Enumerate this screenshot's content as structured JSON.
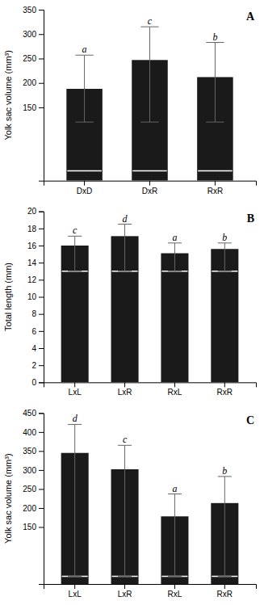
{
  "chart_data": [
    {
      "type": "bar",
      "annotations": [
        "A"
      ],
      "categories": [
        "DxD",
        "DxR",
        "RxR"
      ],
      "values": [
        188,
        247,
        212
      ],
      "error_high": [
        257,
        315,
        283
      ],
      "error_low": [
        120,
        120,
        120
      ],
      "sig_labels": [
        "a",
        "c",
        "b"
      ],
      "white_line_y": 20,
      "ylabel": "Yolk sac volume (mm³)",
      "ylim": [
        0,
        350
      ],
      "yticks": [
        150,
        200,
        250,
        300,
        350
      ],
      "color": "#1a1a1a",
      "error_color": "#666666"
    },
    {
      "type": "bar",
      "annotations": [
        "B"
      ],
      "categories": [
        "LxL",
        "LxR",
        "RxL",
        "RxR"
      ],
      "values": [
        16.0,
        17.1,
        15.1,
        15.6
      ],
      "error_high": [
        17.1,
        18.5,
        16.3,
        16.3
      ],
      "error_low": [
        13.0,
        13.0,
        13.0,
        13.0
      ],
      "sig_labels": [
        "c",
        "d",
        "a",
        "b"
      ],
      "white_line_y": 13.0,
      "ylabel": "Total length (mm)",
      "ylim": [
        0,
        20
      ],
      "yticks": [
        0,
        2,
        4,
        6,
        8,
        10,
        12,
        14,
        16,
        18,
        20
      ],
      "color": "#1a1a1a",
      "error_color": "#666666"
    },
    {
      "type": "bar",
      "annotations": [
        "C"
      ],
      "categories": [
        "LxL",
        "LxR",
        "RxL",
        "RxR"
      ],
      "values": [
        345,
        302,
        178,
        213
      ],
      "error_high": [
        420,
        365,
        237,
        283
      ],
      "error_low": [
        20,
        20,
        20,
        20
      ],
      "sig_labels": [
        "d",
        "c",
        "a",
        "b"
      ],
      "white_line_y": 20,
      "ylabel": "Yolk sac volume (mm³)",
      "ylim": [
        0,
        450
      ],
      "yticks": [
        150,
        200,
        250,
        300,
        350,
        400,
        450
      ],
      "color": "#1a1a1a",
      "error_color": "#666666"
    }
  ]
}
